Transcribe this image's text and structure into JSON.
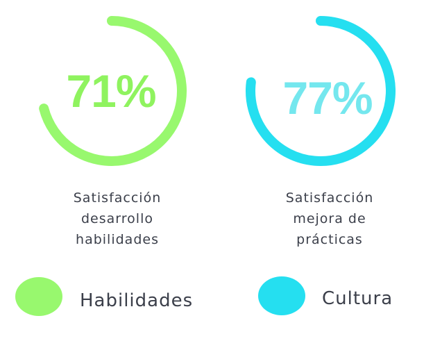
{
  "chart_data": {
    "type": "gauge",
    "items": [
      {
        "value": 71,
        "value_label": "71%",
        "caption_lines": [
          "Satisfacción",
          "desarrollo",
          "habilidades"
        ],
        "color": "#98f86e",
        "value_color": "#8ff35f"
      },
      {
        "value": 77,
        "value_label": "77%",
        "caption_lines": [
          "Satisfacción",
          "mejora de",
          "prácticas"
        ],
        "color": "#25dff0",
        "value_color": "#74e7ee"
      }
    ],
    "legend": [
      {
        "label": "Habilidades",
        "color": "#98f86e"
      },
      {
        "label": "Cultura",
        "color": "#25dff0"
      }
    ]
  }
}
